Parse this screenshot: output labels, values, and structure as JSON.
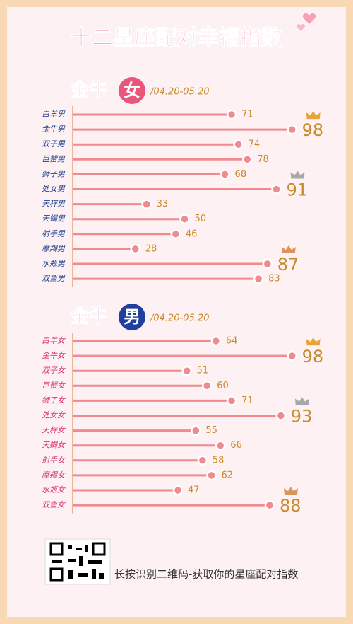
{
  "page": {
    "title": "十二星座配对幸福指数",
    "footer": "长按识别二维码-获取你的星座配对指数"
  },
  "chart_data": [
    {
      "type": "bar",
      "title": "金牛",
      "badge": "女",
      "subtitle": "/04.20-05.20",
      "accent": "#e8577a",
      "categories": [
        "白羊男",
        "金牛男",
        "双子男",
        "巨蟹男",
        "狮子男",
        "处女男",
        "天秤男",
        "天蝎男",
        "射手男",
        "摩羯男",
        "水瓶男",
        "双鱼男"
      ],
      "values": [
        71,
        98,
        74,
        78,
        68,
        91,
        33,
        50,
        46,
        28,
        87,
        83
      ],
      "color": "#f08a8f",
      "label_color": "#1f3f8f",
      "value_color": "#c98a2a",
      "xlim": [
        0,
        100
      ],
      "crowns": [
        {
          "index": 1,
          "color": "#e8a33a"
        },
        {
          "index": 5,
          "color": "#a8a8a8"
        },
        {
          "index": 10,
          "color": "#d9955a"
        }
      ]
    },
    {
      "type": "bar",
      "title": "金牛",
      "badge": "男",
      "subtitle": "/04.20-05.20",
      "accent": "#1f3f9f",
      "categories": [
        "白羊女",
        "金牛女",
        "双子女",
        "巨蟹女",
        "狮子女",
        "处女女",
        "天秤女",
        "天蝎女",
        "射手女",
        "摩羯女",
        "水瓶女",
        "双鱼女"
      ],
      "values": [
        64,
        98,
        51,
        60,
        71,
        93,
        55,
        66,
        58,
        62,
        47,
        88
      ],
      "color": "#f08a8f",
      "label_color": "#d6336c",
      "value_color": "#c98a2a",
      "xlim": [
        0,
        100
      ],
      "crowns": [
        {
          "index": 1,
          "color": "#e8a33a"
        },
        {
          "index": 5,
          "color": "#a8a8a8"
        },
        {
          "index": 11,
          "color": "#d9955a"
        }
      ]
    }
  ]
}
